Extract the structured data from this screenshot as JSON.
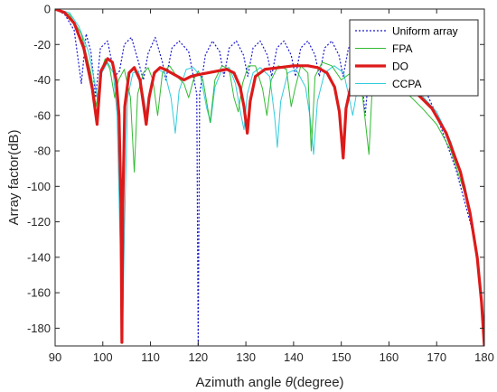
{
  "chart_data": {
    "type": "line",
    "title": "",
    "xlabel_prefix": "Azimuth angle ",
    "xlabel_symbol": "θ",
    "xlabel_suffix": "(degree)",
    "ylabel": "Array factor(dB)",
    "xlim": [
      90,
      180
    ],
    "ylim": [
      -190,
      0
    ],
    "x_ticks": [
      90,
      100,
      110,
      120,
      130,
      140,
      150,
      160,
      170,
      180
    ],
    "y_ticks": [
      0,
      -20,
      -40,
      -60,
      -80,
      -100,
      -120,
      -140,
      -160,
      -180
    ],
    "grid": false,
    "legend_position": "top-right",
    "series": [
      {
        "name": "Uniform array",
        "color": "#1a1acc",
        "style": "dotted",
        "points": [
          [
            90,
            0
          ],
          [
            92,
            -3
          ],
          [
            94,
            -12
          ],
          [
            95.5,
            -42
          ],
          [
            96.5,
            -14
          ],
          [
            97.5,
            -24
          ],
          [
            98.5,
            -50
          ],
          [
            99.5,
            -22
          ],
          [
            101,
            -18
          ],
          [
            102.5,
            -38
          ],
          [
            103.5,
            -35
          ],
          [
            104.5,
            -20
          ],
          [
            106,
            -16
          ],
          [
            107.5,
            -30
          ],
          [
            108.5,
            -40
          ],
          [
            109.5,
            -25
          ],
          [
            111,
            -16
          ],
          [
            112.5,
            -30
          ],
          [
            113.2,
            -40
          ],
          [
            114.5,
            -22
          ],
          [
            116,
            -18
          ],
          [
            118,
            -24
          ],
          [
            119.7,
            -48
          ],
          [
            120,
            -190
          ],
          [
            120.3,
            -48
          ],
          [
            121.5,
            -26
          ],
          [
            123,
            -18
          ],
          [
            124.5,
            -24
          ],
          [
            125.4,
            -38
          ],
          [
            126.5,
            -22
          ],
          [
            128,
            -18
          ],
          [
            129.5,
            -26
          ],
          [
            130.4,
            -38
          ],
          [
            131.5,
            -22
          ],
          [
            133,
            -18
          ],
          [
            134.5,
            -26
          ],
          [
            135.4,
            -38
          ],
          [
            136.5,
            -22
          ],
          [
            138,
            -18
          ],
          [
            139.5,
            -26
          ],
          [
            140.4,
            -38
          ],
          [
            141.5,
            -22
          ],
          [
            143,
            -18
          ],
          [
            144.5,
            -26
          ],
          [
            145.4,
            -38
          ],
          [
            146.5,
            -22
          ],
          [
            148,
            -18
          ],
          [
            149.5,
            -26
          ],
          [
            150.4,
            -38
          ],
          [
            151.5,
            -22
          ],
          [
            153,
            -20
          ],
          [
            154,
            -30
          ],
          [
            155,
            -60
          ],
          [
            156,
            -30
          ],
          [
            158,
            -22
          ],
          [
            161,
            -26
          ],
          [
            164,
            -35
          ],
          [
            166,
            -40
          ],
          [
            168,
            -48
          ],
          [
            170,
            -60
          ],
          [
            172,
            -75
          ],
          [
            174,
            -90
          ],
          [
            176,
            -110
          ],
          [
            177.5,
            -125
          ],
          [
            178.5,
            -140
          ],
          [
            179.3,
            -160
          ],
          [
            180,
            -190
          ]
        ]
      },
      {
        "name": "FPA",
        "color": "#33bb33",
        "style": "solid",
        "points": [
          [
            90,
            0
          ],
          [
            93,
            -3
          ],
          [
            95.5,
            -14
          ],
          [
            97.5,
            -36
          ],
          [
            98.6,
            -55
          ],
          [
            99.5,
            -36
          ],
          [
            100.5,
            -28
          ],
          [
            101.5,
            -34
          ],
          [
            102.5,
            -50
          ],
          [
            103.3,
            -40
          ],
          [
            104.5,
            -34
          ],
          [
            105.8,
            -50
          ],
          [
            106.6,
            -92
          ],
          [
            107.3,
            -48
          ],
          [
            108.5,
            -36
          ],
          [
            109.5,
            -33
          ],
          [
            110.5,
            -40
          ],
          [
            111.5,
            -60
          ],
          [
            112.5,
            -36
          ],
          [
            114,
            -32
          ],
          [
            115.5,
            -38
          ],
          [
            117,
            -42
          ],
          [
            118,
            -50
          ],
          [
            119,
            -40
          ],
          [
            120,
            -35
          ],
          [
            121,
            -40
          ],
          [
            122.5,
            -64
          ],
          [
            123.5,
            -40
          ],
          [
            125,
            -32
          ],
          [
            126.5,
            -34
          ],
          [
            127.5,
            -50
          ],
          [
            128.4,
            -58
          ],
          [
            129.3,
            -42
          ],
          [
            130.5,
            -32
          ],
          [
            132,
            -32
          ],
          [
            133.5,
            -45
          ],
          [
            134.4,
            -60
          ],
          [
            135.3,
            -40
          ],
          [
            136.8,
            -32
          ],
          [
            138.5,
            -34
          ],
          [
            139.5,
            -55
          ],
          [
            140.3,
            -45
          ],
          [
            141.5,
            -32
          ],
          [
            143,
            -36
          ],
          [
            143.7,
            -80
          ],
          [
            144.5,
            -38
          ],
          [
            146,
            -30
          ],
          [
            148,
            -32
          ],
          [
            150,
            -40
          ],
          [
            151,
            -38
          ],
          [
            153,
            -34
          ],
          [
            154.5,
            -50
          ],
          [
            155.8,
            -82
          ],
          [
            156.5,
            -44
          ],
          [
            158,
            -36
          ],
          [
            161,
            -40
          ],
          [
            164,
            -48
          ],
          [
            167,
            -56
          ],
          [
            170,
            -65
          ],
          [
            173,
            -80
          ],
          [
            176,
            -105
          ],
          [
            178,
            -130
          ],
          [
            179.3,
            -160
          ],
          [
            180,
            -190
          ]
        ]
      },
      {
        "name": "DO",
        "color": "#dd1a1a",
        "style": "bold",
        "points": [
          [
            90,
            0
          ],
          [
            92,
            -2
          ],
          [
            94,
            -8
          ],
          [
            96,
            -22
          ],
          [
            97.8,
            -45
          ],
          [
            98.8,
            -65
          ],
          [
            99.6,
            -35
          ],
          [
            101,
            -28
          ],
          [
            102,
            -30
          ],
          [
            102.8,
            -40
          ],
          [
            103.4,
            -60
          ],
          [
            103.8,
            -110
          ],
          [
            104,
            -188
          ],
          [
            104.2,
            -110
          ],
          [
            104.6,
            -55
          ],
          [
            105.5,
            -36
          ],
          [
            106.6,
            -33
          ],
          [
            107.8,
            -40
          ],
          [
            108.6,
            -55
          ],
          [
            109.1,
            -65
          ],
          [
            109.7,
            -50
          ],
          [
            110.8,
            -36
          ],
          [
            112,
            -33
          ],
          [
            113,
            -34
          ],
          [
            115,
            -37
          ],
          [
            117,
            -40
          ],
          [
            118.5,
            -38
          ],
          [
            120,
            -37
          ],
          [
            122,
            -36
          ],
          [
            124,
            -35
          ],
          [
            126,
            -34
          ],
          [
            127.5,
            -36
          ],
          [
            128.8,
            -44
          ],
          [
            129.6,
            -55
          ],
          [
            130.3,
            -70
          ],
          [
            130.9,
            -52
          ],
          [
            132,
            -38
          ],
          [
            134,
            -34
          ],
          [
            137,
            -33
          ],
          [
            140,
            -32
          ],
          [
            143,
            -32
          ],
          [
            145,
            -33
          ],
          [
            147,
            -36
          ],
          [
            148.6,
            -44
          ],
          [
            149.6,
            -58
          ],
          [
            150.4,
            -84
          ],
          [
            151,
            -56
          ],
          [
            152.3,
            -40
          ],
          [
            154,
            -34
          ],
          [
            157,
            -34
          ],
          [
            160,
            -37
          ],
          [
            163,
            -42
          ],
          [
            166,
            -48
          ],
          [
            169,
            -56
          ],
          [
            172,
            -70
          ],
          [
            175,
            -92
          ],
          [
            177,
            -115
          ],
          [
            178.5,
            -140
          ],
          [
            179.4,
            -165
          ],
          [
            180,
            -190
          ]
        ]
      },
      {
        "name": "CCPA",
        "color": "#33ccdd",
        "style": "solid",
        "points": [
          [
            90,
            0
          ],
          [
            93,
            -2
          ],
          [
            95,
            -10
          ],
          [
            97,
            -24
          ],
          [
            98.2,
            -40
          ],
          [
            99,
            -52
          ],
          [
            99.8,
            -36
          ],
          [
            101,
            -30
          ],
          [
            102.2,
            -36
          ],
          [
            103,
            -60
          ],
          [
            103.7,
            -140
          ],
          [
            104.1,
            -188
          ],
          [
            104.5,
            -130
          ],
          [
            105.2,
            -50
          ],
          [
            106.3,
            -36
          ],
          [
            107.5,
            -35
          ],
          [
            108.6,
            -50
          ],
          [
            109.3,
            -62
          ],
          [
            110.1,
            -42
          ],
          [
            111.5,
            -34
          ],
          [
            113,
            -36
          ],
          [
            114.3,
            -50
          ],
          [
            115.2,
            -70
          ],
          [
            116,
            -46
          ],
          [
            117.5,
            -34
          ],
          [
            119,
            -33
          ],
          [
            120.5,
            -38
          ],
          [
            121.8,
            -56
          ],
          [
            122.6,
            -64
          ],
          [
            123.5,
            -44
          ],
          [
            125,
            -34
          ],
          [
            126.5,
            -33
          ],
          [
            127.8,
            -42
          ],
          [
            129,
            -60
          ],
          [
            129.6,
            -68
          ],
          [
            130.3,
            -48
          ],
          [
            131.5,
            -36
          ],
          [
            133,
            -33
          ],
          [
            135,
            -38
          ],
          [
            136,
            -60
          ],
          [
            136.6,
            -78
          ],
          [
            137.3,
            -52
          ],
          [
            138.8,
            -36
          ],
          [
            140.5,
            -34
          ],
          [
            142.5,
            -44
          ],
          [
            143.5,
            -62
          ],
          [
            144.2,
            -82
          ],
          [
            145,
            -52
          ],
          [
            146.5,
            -36
          ],
          [
            148.5,
            -32
          ],
          [
            150.5,
            -36
          ],
          [
            151.5,
            -48
          ],
          [
            152.4,
            -60
          ],
          [
            153.3,
            -46
          ],
          [
            155,
            -36
          ],
          [
            157,
            -32
          ],
          [
            159,
            -33
          ],
          [
            162,
            -38
          ],
          [
            166,
            -46
          ],
          [
            170,
            -58
          ],
          [
            173,
            -75
          ],
          [
            176,
            -100
          ],
          [
            178,
            -130
          ],
          [
            179.3,
            -165
          ],
          [
            180,
            -190
          ]
        ]
      }
    ]
  }
}
